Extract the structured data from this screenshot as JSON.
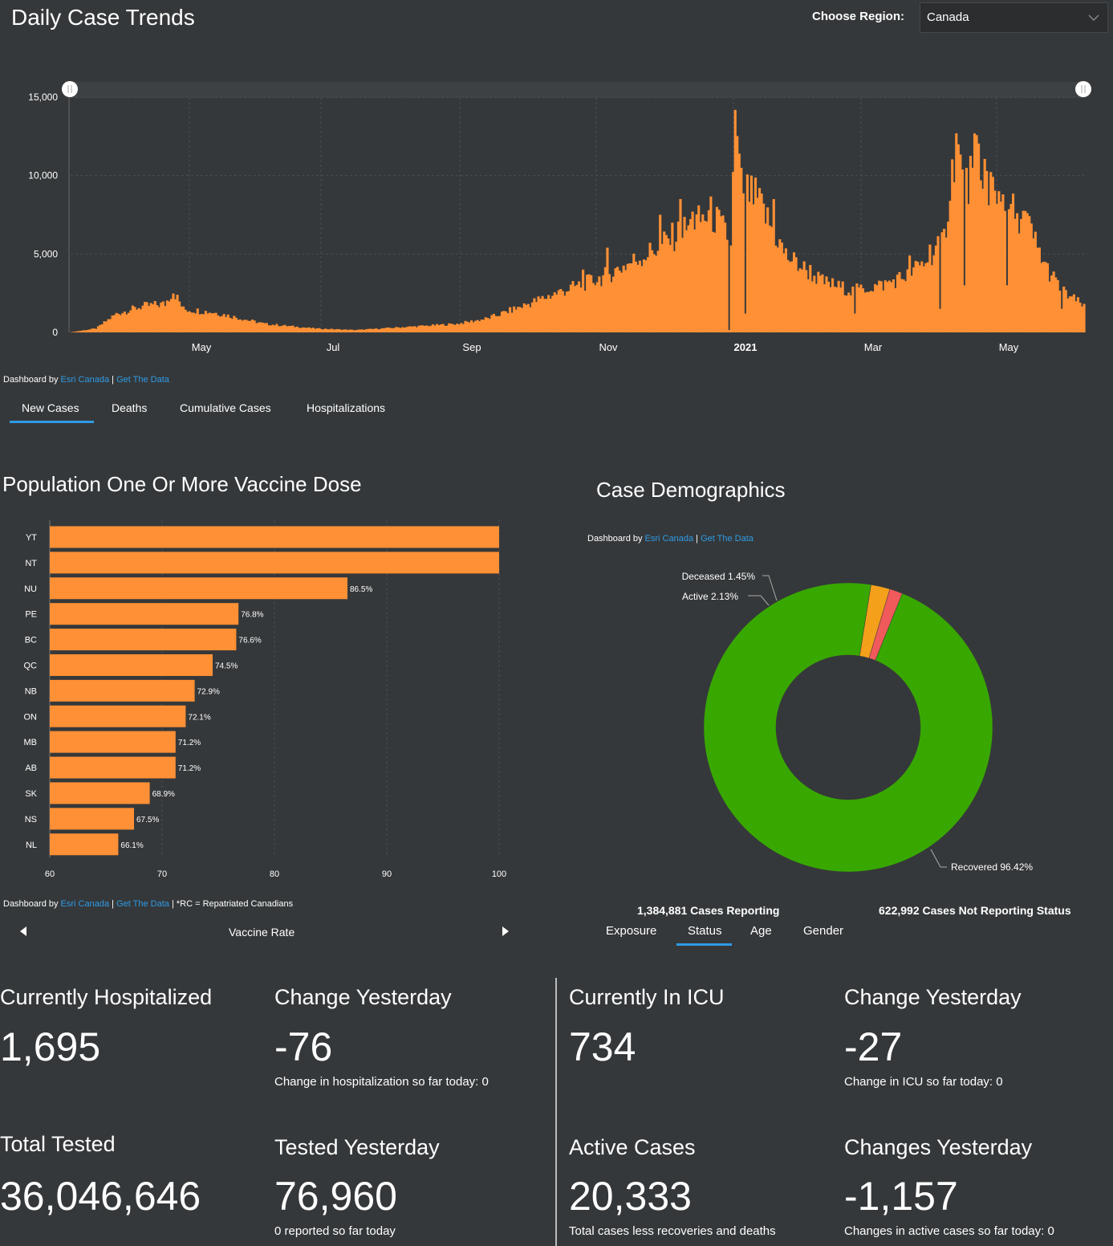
{
  "trends": {
    "title": "Daily Case Trends",
    "region_label": "Choose Region:",
    "region_value": "Canada",
    "attribution": {
      "prefix": "Dashboard by ",
      "esri": "Esri Canada",
      "sep": " | ",
      "data": "Get The Data"
    },
    "tabs": [
      {
        "label": "New Cases",
        "active": true
      },
      {
        "label": "Deaths",
        "active": false
      },
      {
        "label": "Cumulative Cases",
        "active": false
      },
      {
        "label": "Hospitalizations",
        "active": false
      }
    ],
    "bar_color": "#ff9035"
  },
  "vaccine": {
    "title": "Population One Or More Vaccine Dose",
    "attribution": {
      "prefix": "Dashboard by ",
      "esri": "Esri Canada",
      "sep": " | ",
      "data": "Get The Data",
      "note": " | *RC = Repatriated Canadians"
    },
    "pager_label": "Vaccine Rate",
    "prev_icon": "caret-left-icon",
    "next_icon": "caret-right-icon"
  },
  "demographics": {
    "title": "Case Demographics",
    "attribution": {
      "prefix": "Dashboard by ",
      "esri": "Esri Canada",
      "sep": " | ",
      "data": "Get The Data"
    },
    "cases_reporting": "1,384,881 Cases Reporting",
    "cases_not_reporting": "622,992 Cases Not Reporting Status",
    "tabs": [
      {
        "label": "Exposure",
        "active": false
      },
      {
        "label": "Status",
        "active": true
      },
      {
        "label": "Age",
        "active": false
      },
      {
        "label": "Gender",
        "active": false
      }
    ],
    "colors": {
      "recovered": "#38a800",
      "active": "#f5a01b",
      "deceased": "#f05a5a"
    }
  },
  "stats": {
    "hospitalized": {
      "label": "Currently Hospitalized",
      "value": "1,695"
    },
    "hosp_change": {
      "label": "Change Yesterday",
      "value": "-76",
      "note": "Change in hospitalization so far today: 0"
    },
    "icu": {
      "label": "Currently In ICU",
      "value": "734"
    },
    "icu_change": {
      "label": "Change Yesterday",
      "value": "-27",
      "note": "Change in ICU so far today: 0"
    },
    "tested": {
      "label": "Total Tested",
      "value": "36,046,646"
    },
    "tested_yesterday": {
      "label": "Tested Yesterday",
      "value": "76,960",
      "note": "0 reported so far today"
    },
    "active": {
      "label": "Active Cases",
      "value": "20,333",
      "note": "Total cases less recoveries and deaths"
    },
    "active_change": {
      "label": "Changes Yesterday",
      "value": "-1,157",
      "note": "Changes in active cases so far today: 0"
    }
  },
  "chart_data": [
    {
      "type": "bar",
      "title": "Daily Case Trends",
      "series_name": "New Cases",
      "xlabel": "",
      "ylabel": "",
      "ylim": [
        0,
        15000
      ],
      "y_ticks": [
        "0",
        "5,000",
        "10,000",
        "15,000"
      ],
      "x_ticks": [
        "May",
        "Jul",
        "Sep",
        "Nov",
        "2021",
        "Mar",
        "May"
      ],
      "x_range": [
        "2020-03-10",
        "2021-06-20"
      ],
      "anchors": [
        [
          0,
          20
        ],
        [
          12,
          250
        ],
        [
          22,
          1200
        ],
        [
          35,
          1700
        ],
        [
          46,
          1850
        ],
        [
          50,
          2700
        ],
        [
          55,
          1500
        ],
        [
          70,
          1300
        ],
        [
          95,
          550
        ],
        [
          120,
          250
        ],
        [
          140,
          150
        ],
        [
          165,
          350
        ],
        [
          190,
          550
        ],
        [
          205,
          900
        ],
        [
          220,
          1600
        ],
        [
          240,
          2600
        ],
        [
          262,
          3600
        ],
        [
          285,
          5200
        ],
        [
          300,
          6500
        ],
        [
          315,
          7700
        ],
        [
          325,
          6000
        ],
        [
          327,
          13500
        ],
        [
          330,
          9500
        ],
        [
          338,
          8600
        ],
        [
          352,
          5000
        ],
        [
          370,
          3300
        ],
        [
          385,
          2700
        ],
        [
          400,
          3100
        ],
        [
          410,
          3600
        ],
        [
          420,
          4500
        ],
        [
          430,
          6100
        ],
        [
          436,
          12600
        ],
        [
          440,
          9000
        ],
        [
          446,
          11600
        ],
        [
          455,
          9300
        ],
        [
          462,
          8100
        ],
        [
          470,
          7400
        ],
        [
          480,
          4300
        ],
        [
          488,
          2700
        ],
        [
          498,
          1800
        ],
        [
          500,
          1400
        ]
      ],
      "spikes": [
        [
          252,
          4000
        ],
        [
          264,
          5400
        ],
        [
          290,
          7500
        ],
        [
          300,
          8500
        ],
        [
          306,
          7700
        ],
        [
          318,
          8000
        ],
        [
          322,
          7000
        ],
        [
          329,
          11400
        ],
        [
          335,
          10000
        ],
        [
          346,
          8500
        ],
        [
          364,
          4300
        ],
        [
          413,
          4900
        ],
        [
          423,
          5600
        ],
        [
          428,
          6000
        ],
        [
          444,
          10500
        ],
        [
          448,
          9700
        ],
        [
          452,
          8100
        ],
        [
          459,
          8800
        ],
        [
          466,
          7600
        ],
        [
          476,
          5400
        ]
      ],
      "dips": [
        [
          324,
          150
        ],
        [
          332,
          1200
        ],
        [
          428,
          1500
        ],
        [
          440,
          3000
        ],
        [
          461,
          3000
        ],
        [
          488,
          1500
        ],
        [
          386,
          1200
        ]
      ]
    },
    {
      "type": "bar",
      "orientation": "horizontal",
      "title": "Population One Or More Vaccine Dose",
      "categories": [
        "YT",
        "NT",
        "NU",
        "PE",
        "BC",
        "QC",
        "NB",
        "ON",
        "MB",
        "AB",
        "SK",
        "NS",
        "NL"
      ],
      "values": [
        100,
        100,
        86.5,
        76.8,
        76.6,
        74.5,
        72.9,
        72.1,
        71.2,
        71.2,
        68.9,
        67.5,
        66.1
      ],
      "labels": [
        "",
        "",
        "86.5%",
        "76.8%",
        "76.6%",
        "74.5%",
        "72.9%",
        "72.1%",
        "71.2%",
        "71.2%",
        "68.9%",
        "67.5%",
        "66.1%"
      ],
      "x_ticks": [
        "60",
        "70",
        "80",
        "90",
        "100"
      ],
      "xlim": [
        60,
        100
      ]
    },
    {
      "type": "pie",
      "title": "Case Demographics",
      "slices": [
        {
          "label": "Recovered 96.42%",
          "value": 96.42,
          "key": "recovered"
        },
        {
          "label": "Active 2.13%",
          "value": 2.13,
          "key": "active"
        },
        {
          "label": "Deceased 1.45%",
          "value": 1.45,
          "key": "deceased"
        }
      ]
    }
  ]
}
